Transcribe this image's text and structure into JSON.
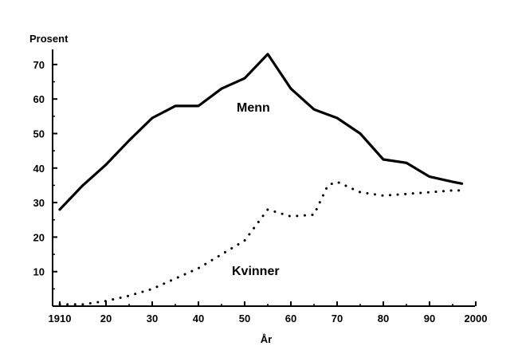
{
  "chart_data": {
    "type": "line",
    "ylabel": "Prosent",
    "xlabel": "År",
    "xlim": [
      1910,
      2000
    ],
    "ylim": [
      0,
      75
    ],
    "grid": false,
    "x_ticks": [
      "1910",
      "20",
      "30",
      "40",
      "50",
      "60",
      "70",
      "80",
      "90",
      "2000"
    ],
    "y_ticks": [
      "10",
      "20",
      "30",
      "40",
      "50",
      "60",
      "70"
    ],
    "series": [
      {
        "name": "Menn",
        "style": "solid",
        "color": "#000000",
        "points": [
          [
            1910,
            28
          ],
          [
            1915,
            35
          ],
          [
            1920,
            41
          ],
          [
            1925,
            48
          ],
          [
            1930,
            54.5
          ],
          [
            1935,
            58
          ],
          [
            1940,
            58
          ],
          [
            1945,
            63
          ],
          [
            1950,
            66
          ],
          [
            1955,
            73
          ],
          [
            1960,
            63
          ],
          [
            1965,
            57
          ],
          [
            1970,
            54.5
          ],
          [
            1975,
            50
          ],
          [
            1980,
            42.5
          ],
          [
            1985,
            41.5
          ],
          [
            1990,
            37.5
          ],
          [
            1995,
            36
          ],
          [
            1997,
            35.5
          ]
        ]
      },
      {
        "name": "Kvinner",
        "style": "dotted",
        "color": "#000000",
        "points": [
          [
            1910,
            0.5
          ],
          [
            1915,
            0.5
          ],
          [
            1920,
            1.5
          ],
          [
            1925,
            3
          ],
          [
            1930,
            5
          ],
          [
            1935,
            8
          ],
          [
            1940,
            11
          ],
          [
            1945,
            15
          ],
          [
            1950,
            19
          ],
          [
            1955,
            28
          ],
          [
            1960,
            26
          ],
          [
            1965,
            26.5
          ],
          [
            1968,
            35
          ],
          [
            1970,
            36
          ],
          [
            1975,
            33
          ],
          [
            1980,
            32
          ],
          [
            1985,
            32.5
          ],
          [
            1990,
            33
          ],
          [
            1995,
            33.5
          ],
          [
            1997,
            33.5
          ]
        ]
      }
    ]
  }
}
